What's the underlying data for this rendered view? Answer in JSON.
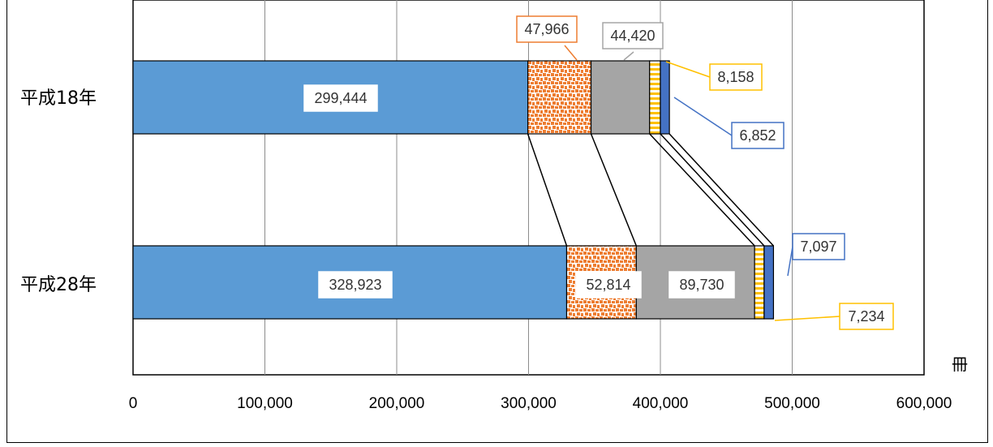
{
  "chart_data": {
    "type": "bar",
    "orientation": "horizontal",
    "stacked": true,
    "categories": [
      "平成18年",
      "平成28年"
    ],
    "series": [
      {
        "values": [
          299444,
          328923
        ],
        "color": "#5B9BD5",
        "pattern": "solid"
      },
      {
        "values": [
          47966,
          52814
        ],
        "color": "#ED7D31",
        "pattern": "dots"
      },
      {
        "values": [
          44420,
          89730
        ],
        "color": "#A5A5A5",
        "pattern": "solid"
      },
      {
        "values": [
          8158,
          7234
        ],
        "color": "#FFC000",
        "pattern": "horizontal-stripes"
      },
      {
        "values": [
          6852,
          7097
        ],
        "color": "#4472C4",
        "pattern": "solid"
      }
    ],
    "data_labels": [
      [
        "299,444",
        "47,966",
        "44,420",
        "8,158",
        "6,852"
      ],
      [
        "328,923",
        "52,814",
        "89,730",
        "7,234",
        "7,097"
      ]
    ],
    "xlim": [
      0,
      600000
    ],
    "x_ticks": [
      0,
      100000,
      200000,
      300000,
      400000,
      500000,
      600000
    ],
    "x_tick_labels": [
      "0",
      "100,000",
      "200,000",
      "300,000",
      "400,000",
      "500,000",
      "600,000"
    ],
    "unit": "冊",
    "series_lines": true,
    "grid": "vertical",
    "title": "",
    "xlabel": "",
    "ylabel": ""
  }
}
